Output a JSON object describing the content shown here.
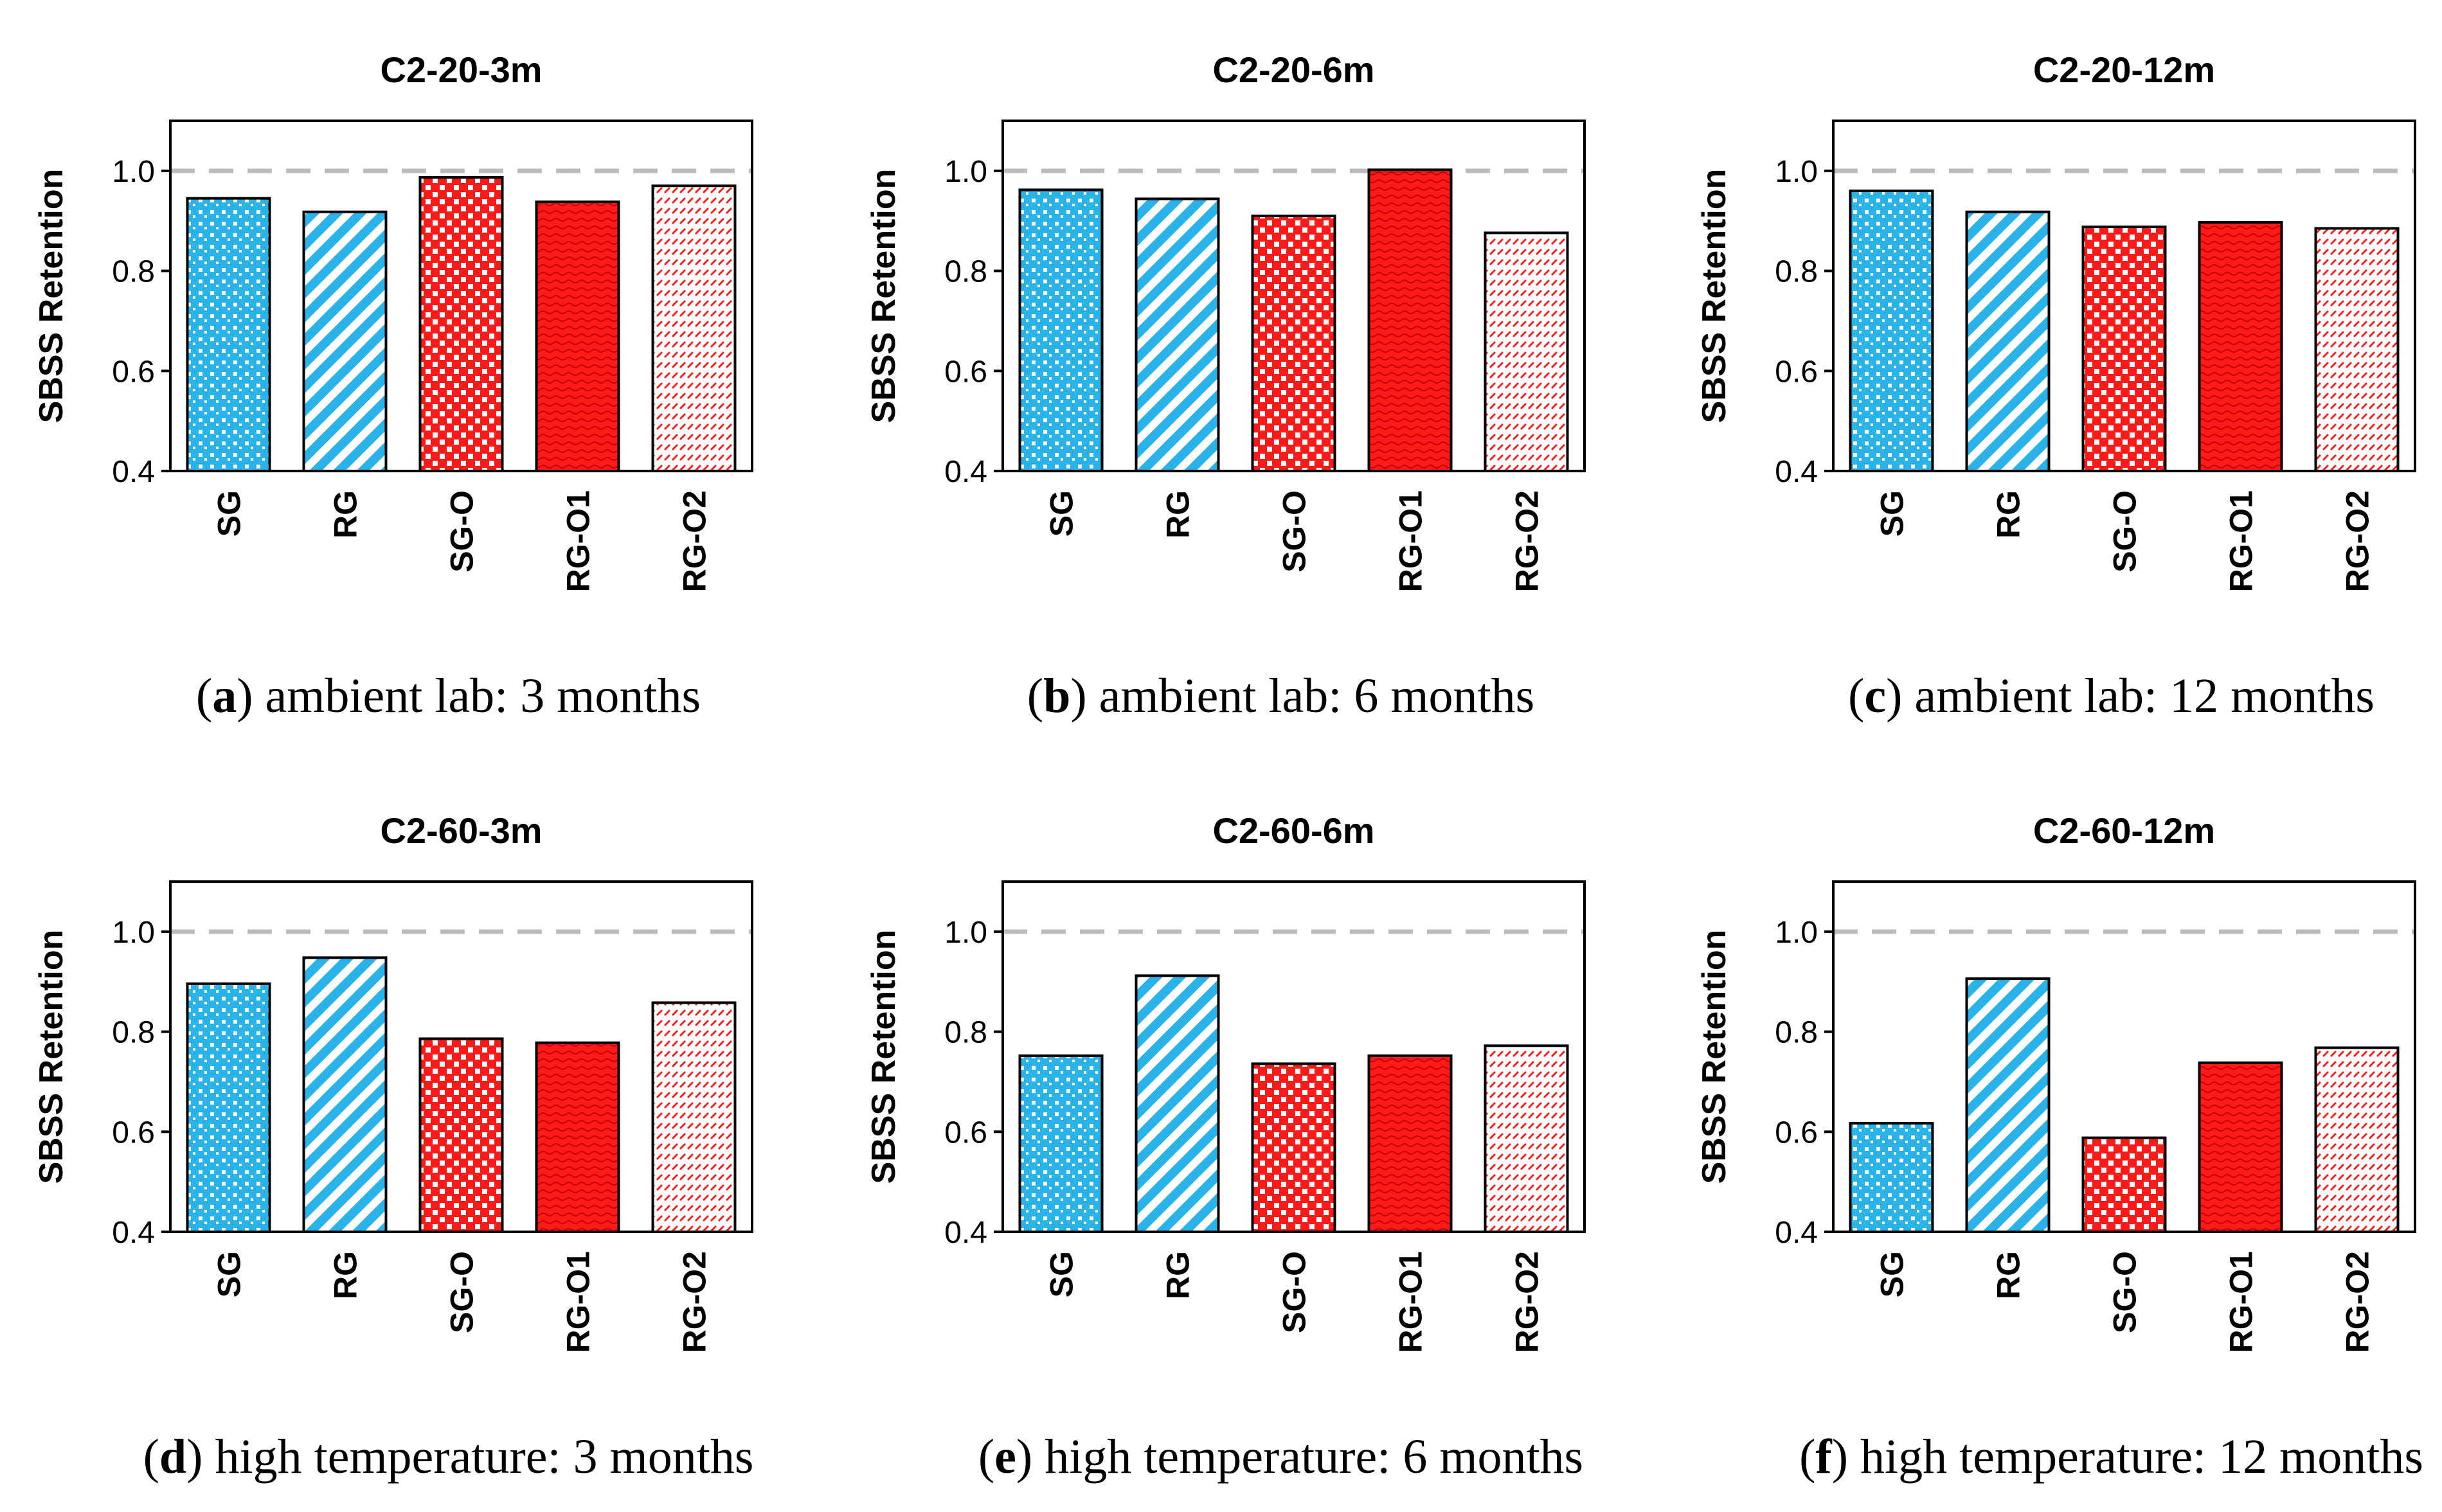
{
  "colors": {
    "blue": "#29b3e8",
    "red": "#ff1a1a",
    "reference_line": "#bdbdbd",
    "axis": "#000000"
  },
  "chart_data": [
    {
      "type": "bar",
      "title": "C2-20-3m",
      "caption_letter": "a",
      "caption_text": ") ambient lab: 3 months",
      "ylabel": "SBSS Retention",
      "ylim": [
        0.4,
        1.1
      ],
      "yticks": [
        "0.4",
        "0.6",
        "0.8",
        "1.0"
      ],
      "reference_line": 1.0,
      "categories": [
        "SG",
        "RG",
        "SG-O",
        "RG-O1",
        "RG-O2"
      ],
      "values": [
        0.945,
        0.918,
        0.987,
        0.938,
        0.97
      ]
    },
    {
      "type": "bar",
      "title": "C2-20-6m",
      "caption_letter": "b",
      "caption_text": ") ambient lab: 6 months",
      "ylabel": "SBSS Retention",
      "ylim": [
        0.4,
        1.1
      ],
      "yticks": [
        "0.4",
        "0.6",
        "0.8",
        "1.0"
      ],
      "reference_line": 1.0,
      "categories": [
        "SG",
        "RG",
        "SG-O",
        "RG-O1",
        "RG-O2"
      ],
      "values": [
        0.962,
        0.944,
        0.91,
        1.002,
        0.876
      ]
    },
    {
      "type": "bar",
      "title": "C2-20-12m",
      "caption_letter": "c",
      "caption_text": ") ambient lab: 12 months",
      "ylabel": "SBSS Retention",
      "ylim": [
        0.4,
        1.1
      ],
      "yticks": [
        "0.4",
        "0.6",
        "0.8",
        "1.0"
      ],
      "reference_line": 1.0,
      "categories": [
        "SG",
        "RG",
        "SG-O",
        "RG-O1",
        "RG-O2"
      ],
      "values": [
        0.96,
        0.918,
        0.888,
        0.897,
        0.885
      ]
    },
    {
      "type": "bar",
      "title": "C2-60-3m",
      "caption_letter": "d",
      "caption_text": ") high temperature: 3 months",
      "ylabel": "SBSS Retention",
      "ylim": [
        0.4,
        1.1
      ],
      "yticks": [
        "0.4",
        "0.6",
        "0.8",
        "1.0"
      ],
      "reference_line": 1.0,
      "categories": [
        "SG",
        "RG",
        "SG-O",
        "RG-O1",
        "RG-O2"
      ],
      "values": [
        0.896,
        0.948,
        0.786,
        0.778,
        0.858
      ]
    },
    {
      "type": "bar",
      "title": "C2-60-6m",
      "caption_letter": "e",
      "caption_text": ") high temperature: 6 months",
      "ylabel": "SBSS Retention",
      "ylim": [
        0.4,
        1.1
      ],
      "yticks": [
        "0.4",
        "0.6",
        "0.8",
        "1.0"
      ],
      "reference_line": 1.0,
      "categories": [
        "SG",
        "RG",
        "SG-O",
        "RG-O1",
        "RG-O2"
      ],
      "values": [
        0.752,
        0.912,
        0.736,
        0.752,
        0.772
      ]
    },
    {
      "type": "bar",
      "title": "C2-60-12m",
      "caption_letter": "f",
      "caption_text": ") high temperature: 12 months",
      "ylabel": "SBSS Retention",
      "ylim": [
        0.4,
        1.1
      ],
      "yticks": [
        "0.4",
        "0.6",
        "0.8",
        "1.0"
      ],
      "reference_line": 1.0,
      "categories": [
        "SG",
        "RG",
        "SG-O",
        "RG-O1",
        "RG-O2"
      ],
      "values": [
        0.617,
        0.906,
        0.588,
        0.738,
        0.768
      ]
    }
  ]
}
